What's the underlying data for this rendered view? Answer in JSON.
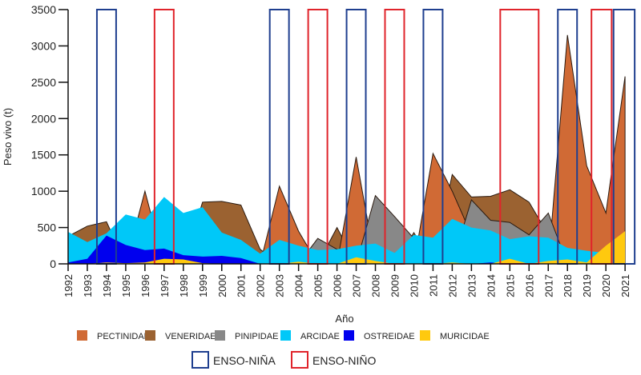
{
  "chart_data": {
    "type": "area",
    "title": "",
    "xlabel": "Año",
    "ylabel": "Peso vivo (t)",
    "ylim": [
      0,
      3500
    ],
    "yticks": [
      0,
      500,
      1000,
      1500,
      2000,
      2500,
      3000,
      3500
    ],
    "x": [
      1992,
      1993,
      1994,
      1995,
      1996,
      1997,
      1998,
      1999,
      2000,
      2001,
      2002,
      2003,
      2004,
      2005,
      2006,
      2007,
      2008,
      2009,
      2010,
      2011,
      2012,
      2013,
      2014,
      2015,
      2016,
      2017,
      2018,
      2019,
      2020,
      2021
    ],
    "grid": false,
    "legend_position": "bottom",
    "series": [
      {
        "name": "VENERIDAE",
        "color": "#9b6231",
        "values": [
          380,
          520,
          580,
          0,
          0,
          0,
          0,
          850,
          860,
          810,
          200,
          0,
          0,
          0,
          500,
          0,
          0,
          0,
          430,
          0,
          1230,
          920,
          930,
          1020,
          850,
          400,
          0,
          0,
          0,
          0
        ]
      },
      {
        "name": "PECTINIDAE",
        "color": "#d06a35",
        "values": [
          0,
          0,
          0,
          0,
          1000,
          0,
          0,
          0,
          0,
          0,
          0,
          1070,
          450,
          0,
          0,
          1470,
          0,
          0,
          0,
          1520,
          1000,
          400,
          0,
          0,
          0,
          0,
          3150,
          1350,
          700,
          2580
        ]
      },
      {
        "name": "PINIPIDAE",
        "color": "#888888",
        "values": [
          0,
          0,
          0,
          0,
          0,
          0,
          0,
          0,
          0,
          0,
          0,
          0,
          0,
          350,
          200,
          0,
          940,
          650,
          350,
          0,
          0,
          880,
          600,
          570,
          400,
          700,
          0,
          0,
          0,
          0
        ]
      },
      {
        "name": "ARCIDAE",
        "color": "#00c8f8",
        "values": [
          440,
          300,
          420,
          680,
          610,
          920,
          700,
          780,
          430,
          330,
          140,
          330,
          250,
          190,
          200,
          250,
          280,
          150,
          400,
          360,
          620,
          500,
          460,
          340,
          380,
          360,
          220,
          180,
          150,
          0
        ]
      },
      {
        "name": "OSTREIDAE",
        "color": "#0000ee",
        "values": [
          20,
          70,
          390,
          260,
          190,
          210,
          120,
          100,
          110,
          80,
          0,
          0,
          0,
          0,
          0,
          0,
          0,
          0,
          0,
          0,
          0,
          0,
          20,
          0,
          0,
          0,
          0,
          0,
          0,
          0
        ]
      },
      {
        "name": "MURICIDAE",
        "color": "#ffc90e",
        "values": [
          0,
          0,
          20,
          10,
          20,
          70,
          60,
          10,
          0,
          0,
          0,
          0,
          30,
          0,
          0,
          90,
          40,
          0,
          0,
          0,
          20,
          0,
          0,
          70,
          0,
          40,
          60,
          20,
          250,
          450
        ]
      }
    ],
    "legend_order": [
      "PECTINIDAE",
      "VENERIDAE",
      "PINIPIDAE",
      "ARCIDAE",
      "OSTREIDAE",
      "MURICIDAE"
    ],
    "enso": {
      "nina": {
        "label": "ENSO-NIÑA",
        "color": "#1f3f8f",
        "periods": [
          [
            1993.5,
            1994.5
          ],
          [
            2002.5,
            2003.5
          ],
          [
            2006.5,
            2007.5
          ],
          [
            2010.5,
            2011.5
          ],
          [
            2017.5,
            2018.5
          ],
          [
            2020.4,
            2021.5
          ]
        ]
      },
      "nino": {
        "label": "ENSO-NIÑO",
        "color": "#e0242b",
        "periods": [
          [
            1996.5,
            1997.5
          ],
          [
            2004.5,
            2005.5
          ],
          [
            2008.5,
            2009.5
          ],
          [
            2014.5,
            2016.5
          ],
          [
            2019.25,
            2020.3
          ]
        ]
      }
    }
  }
}
